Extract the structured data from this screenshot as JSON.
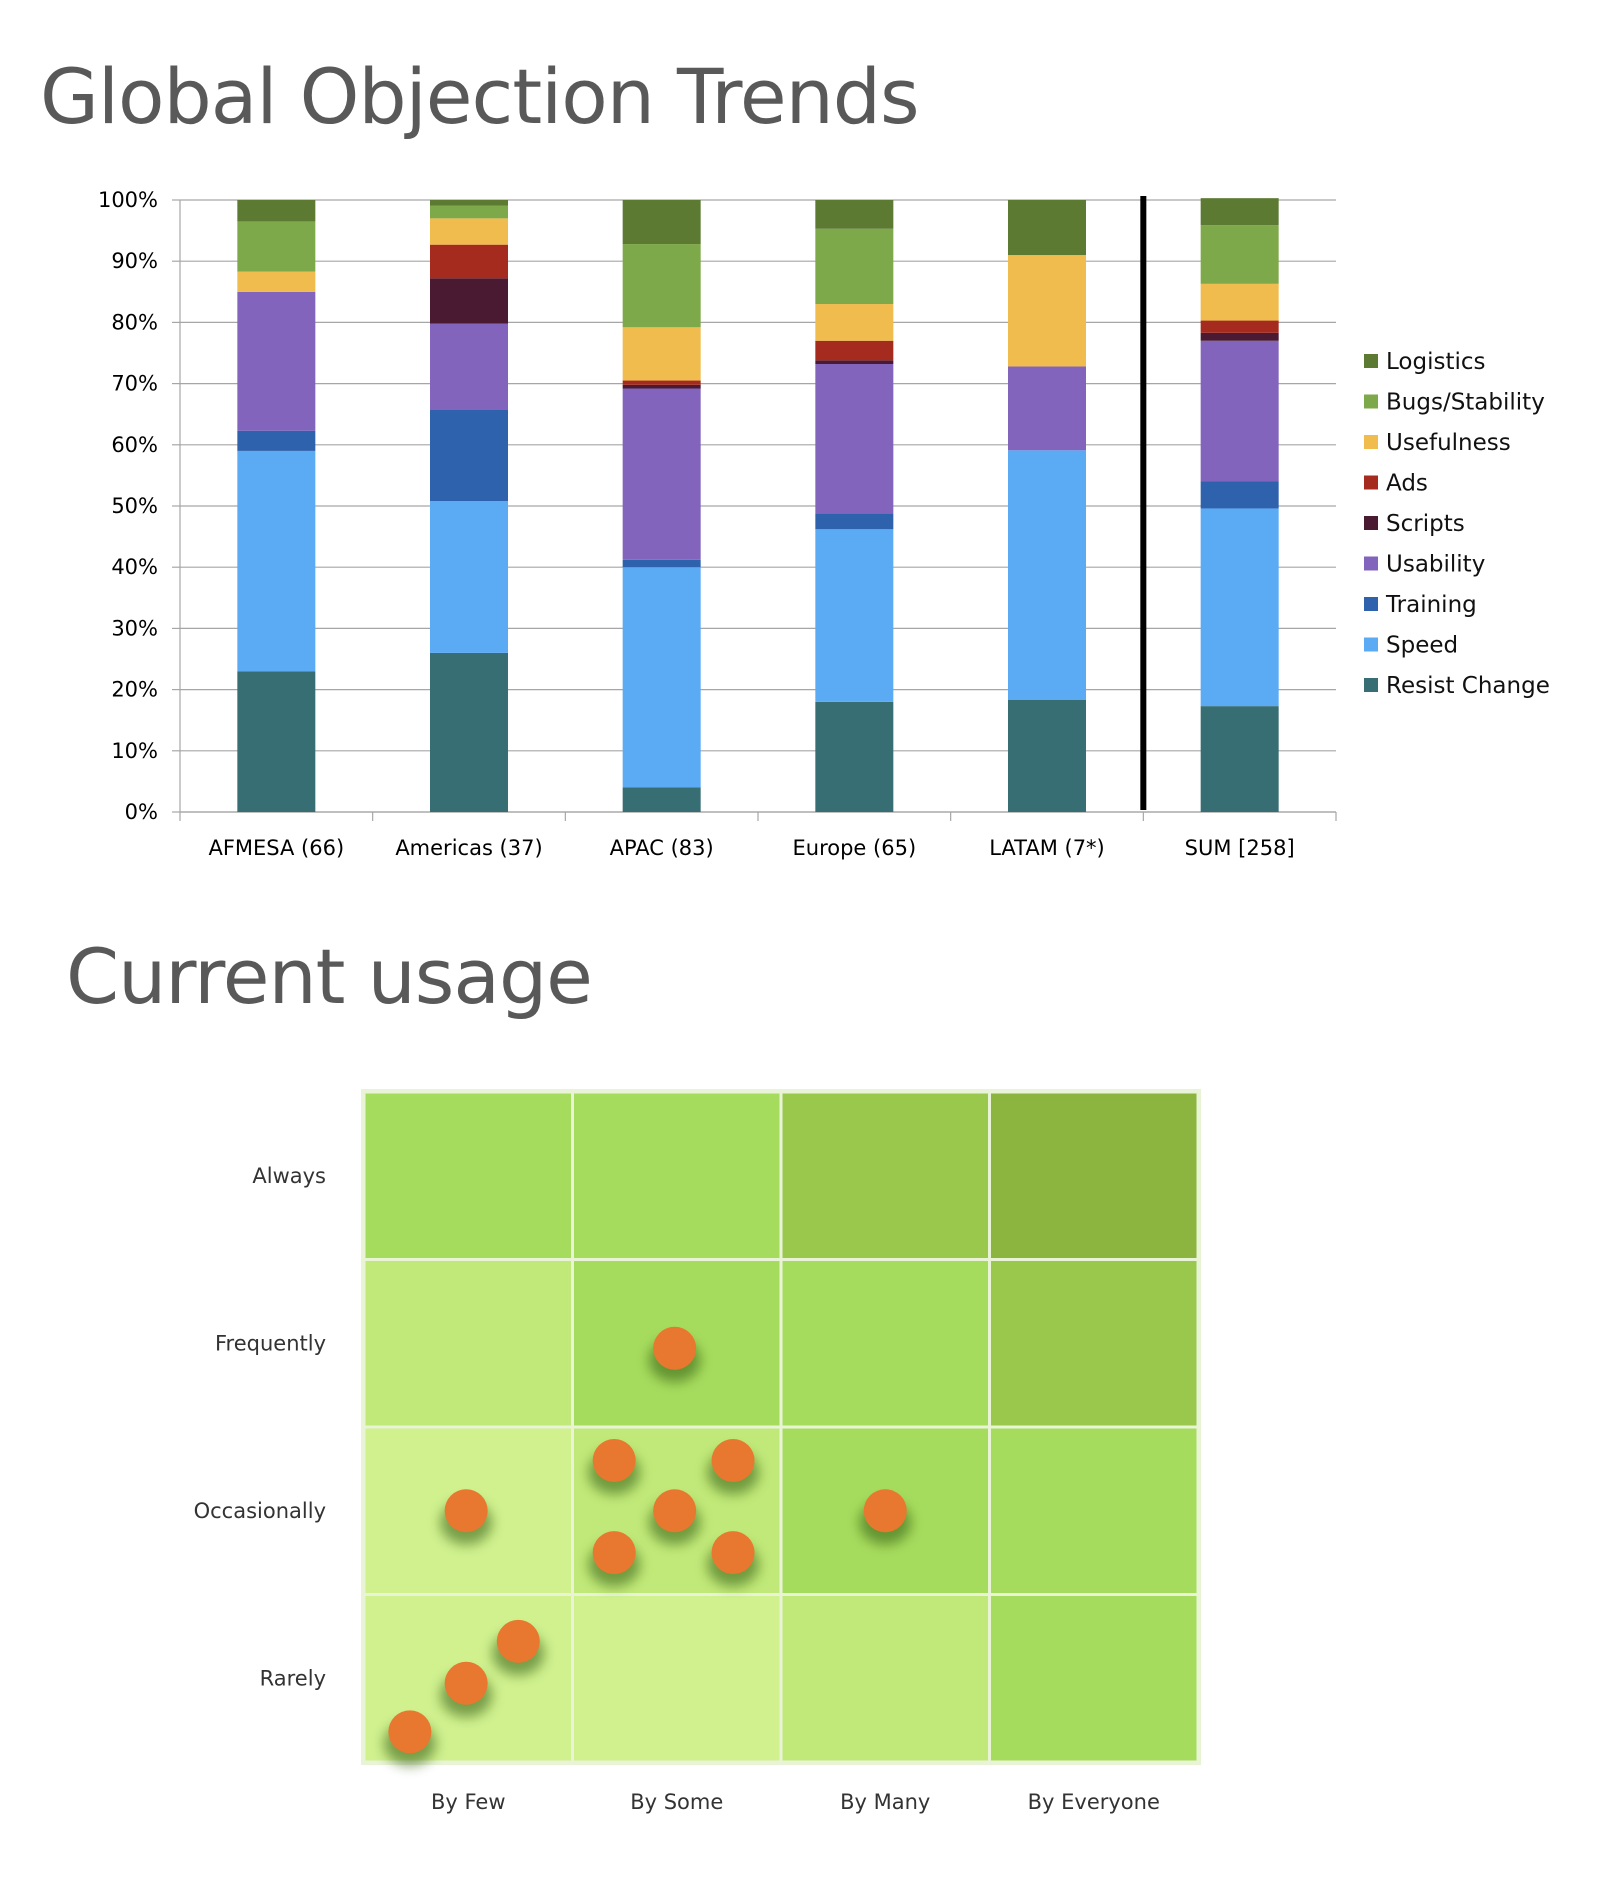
{
  "titles": {
    "objection": "Global Objection Trends",
    "usage": "Current usage"
  },
  "chart_data": [
    {
      "type": "bar",
      "stacked": true,
      "title": "Global Objection Trends",
      "categories": [
        "AFMESA (66)",
        "Americas (37)",
        "APAC (83)",
        "Europe (65)",
        "LATAM (7*)",
        "SUM [258]"
      ],
      "yticks": [
        "0%",
        "10%",
        "20%",
        "30%",
        "40%",
        "50%",
        "60%",
        "70%",
        "80%",
        "90%",
        "100%"
      ],
      "ylim": [
        0,
        100
      ],
      "grid": true,
      "legend_position": "right",
      "divider_after_category": "LATAM (7*)",
      "series": [
        {
          "name": "Resist Change",
          "color": "#376e74",
          "values": [
            23,
            26,
            4,
            18,
            18.3,
            17.3
          ]
        },
        {
          "name": "Speed",
          "color": "#5aabf4",
          "values": [
            36,
            24.8,
            36,
            28.2,
            40.8,
            32.3
          ]
        },
        {
          "name": "Training",
          "color": "#2e62ad",
          "values": [
            3.3,
            15,
            1.2,
            2.6,
            0,
            4.4
          ]
        },
        {
          "name": "Usability",
          "color": "#8264bc",
          "values": [
            22.7,
            14,
            28,
            24.4,
            13.7,
            23
          ]
        },
        {
          "name": "Scripts",
          "color": "#4a1a33",
          "values": [
            0,
            7.4,
            0.6,
            0.6,
            0,
            1.3
          ]
        },
        {
          "name": "Ads",
          "color": "#a52b1f",
          "values": [
            0,
            5.5,
            0.7,
            3.2,
            0,
            2
          ]
        },
        {
          "name": "Usefulness",
          "color": "#f0bc4e",
          "values": [
            3.3,
            4.3,
            8.7,
            6,
            18.2,
            6
          ]
        },
        {
          "name": "Bugs/Stability",
          "color": "#7ea94a",
          "values": [
            8.2,
            2.1,
            13.6,
            12.3,
            0,
            9.6
          ]
        },
        {
          "name": "Logistics",
          "color": "#5d7a33",
          "values": [
            3.5,
            0.9,
            7.2,
            4.7,
            9,
            4.4
          ]
        }
      ]
    },
    {
      "type": "scatter",
      "title": "Current usage",
      "x_categories": [
        "By Few",
        "By Some",
        "By Many",
        "By Everyone"
      ],
      "y_categories": [
        "Always",
        "Frequently",
        "Occasionally",
        "Rarely"
      ],
      "cell_colors": [
        [
          "#a6dc5e",
          "#a6dc5e",
          "#99c84d",
          "#8bb53e"
        ],
        [
          "#c1e979",
          "#a6dc5e",
          "#a6dc5e",
          "#99c84d"
        ],
        [
          "#d1f18f",
          "#c1e979",
          "#a6dc5e",
          "#a6dc5e"
        ],
        [
          "#d1f18f",
          "#d1f18f",
          "#c1e979",
          "#a6dc5e"
        ]
      ],
      "dot_color": "#e87830",
      "points": [
        {
          "x": 1.49,
          "y": 1.53
        },
        {
          "x": 0.49,
          "y": 2.5
        },
        {
          "x": 1.2,
          "y": 2.2
        },
        {
          "x": 1.77,
          "y": 2.2
        },
        {
          "x": 1.49,
          "y": 2.5
        },
        {
          "x": 1.2,
          "y": 2.75
        },
        {
          "x": 1.77,
          "y": 2.75
        },
        {
          "x": 2.5,
          "y": 2.5
        },
        {
          "x": 0.74,
          "y": 3.28
        },
        {
          "x": 0.49,
          "y": 3.53
        },
        {
          "x": 0.22,
          "y": 3.82
        }
      ]
    }
  ]
}
